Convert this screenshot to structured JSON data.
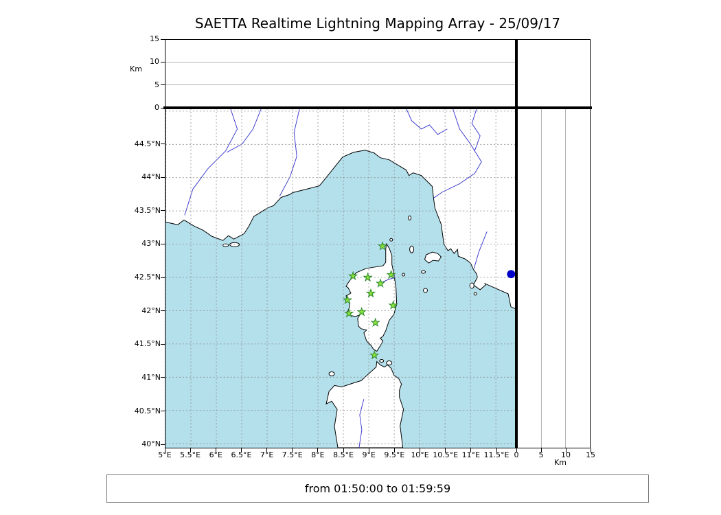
{
  "title": "SAETTA Realtime Lightning Mapping Array - 25/09/17",
  "status_bar": {
    "text": "from 01:50:00 to 01:59:59"
  },
  "chart_data": {
    "type": "scatter",
    "title": "SAETTA Realtime Lightning Mapping Array - 25/09/17",
    "time_window": "from 01:50:00 to 01:59:59",
    "panels": {
      "map": {
        "lon_range": [
          5.0,
          11.89
        ],
        "lat_range": [
          39.94,
          45.04
        ],
        "lon_tick_labels": [
          "5°E",
          "5.5°E",
          "6°E",
          "6.5°E",
          "7°E",
          "7.5°E",
          "8°E",
          "8.5°E",
          "9°E",
          "9.5°E",
          "10°E",
          "10.5°E",
          "11°E",
          "11.5°E"
        ],
        "lon_tick_values": [
          5,
          5.5,
          6,
          6.5,
          7,
          7.5,
          8,
          8.5,
          9,
          9.5,
          10,
          10.5,
          11,
          11.5
        ],
        "lat_tick_labels": [
          "40°N",
          "40.5°N",
          "41°N",
          "41.5°N",
          "42°N",
          "42.5°N",
          "43°N",
          "43.5°N",
          "44°N",
          "44.5°N"
        ],
        "lat_tick_values": [
          40,
          40.5,
          41,
          41.5,
          42,
          42.5,
          43,
          43.5,
          44,
          44.5
        ],
        "lat_grid_values": [
          40,
          40.5,
          41,
          41.5,
          42,
          42.5,
          43,
          43.5,
          44,
          44.5,
          45
        ],
        "grid_style": "dashed"
      },
      "top_altitude": {
        "axis_label": "Km",
        "tick_values": [
          0,
          5,
          10,
          15
        ],
        "range": [
          0,
          15
        ],
        "grid_values": [
          5,
          10
        ]
      },
      "right_altitude": {
        "axis_label": "Km",
        "tick_values": [
          0,
          5,
          10,
          15
        ],
        "range": [
          0,
          15
        ],
        "grid_values": [
          5,
          10
        ]
      }
    },
    "stations": {
      "marker": "star",
      "points": [
        {
          "lon": 9.27,
          "lat": 42.97
        },
        {
          "lon": 8.69,
          "lat": 42.52
        },
        {
          "lon": 8.98,
          "lat": 42.5
        },
        {
          "lon": 9.44,
          "lat": 42.54
        },
        {
          "lon": 9.23,
          "lat": 42.41
        },
        {
          "lon": 9.04,
          "lat": 42.26
        },
        {
          "lon": 8.58,
          "lat": 42.16
        },
        {
          "lon": 9.48,
          "lat": 42.08
        },
        {
          "lon": 8.61,
          "lat": 41.96
        },
        {
          "lon": 8.86,
          "lat": 41.98
        },
        {
          "lon": 9.13,
          "lat": 41.82
        },
        {
          "lon": 9.11,
          "lat": 41.33
        }
      ]
    },
    "sources": {
      "marker": "circle",
      "points": [
        {
          "lon": 11.8,
          "lat": 42.55,
          "alt_km": 0
        }
      ]
    },
    "colors": {
      "sea": "#b4e0ec",
      "land": "#ffffff",
      "coastline": "#000000",
      "river": "#4040d0",
      "grid": "#888888",
      "station_fill": "#8ce23c",
      "station_edge": "#2c8a2c",
      "source": "#0000c8"
    }
  }
}
